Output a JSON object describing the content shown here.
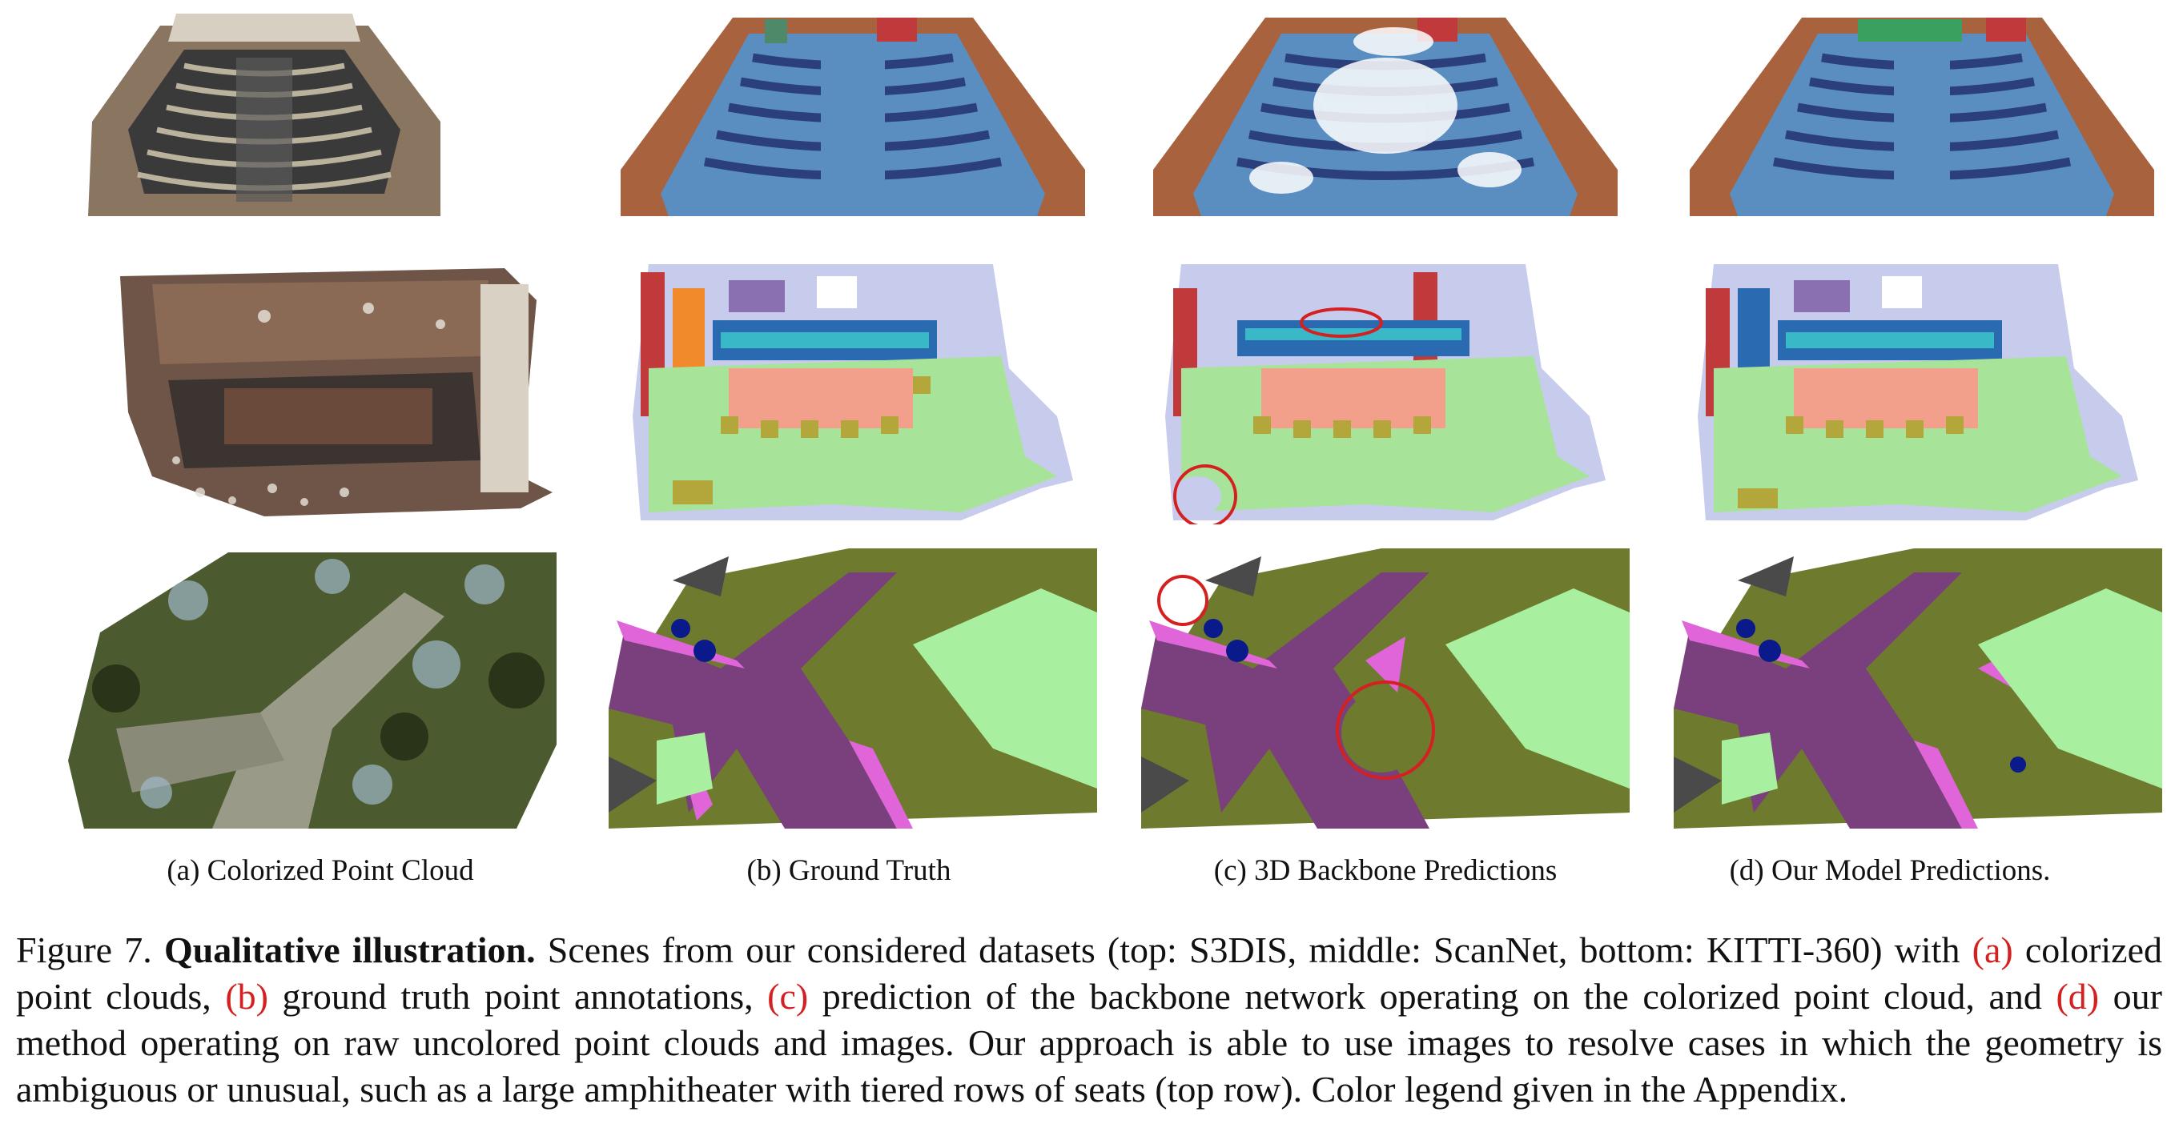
{
  "subcaptions": {
    "a": "(a) Colorized Point Cloud",
    "b": "(b) Ground Truth",
    "c": "(c) 3D Backbone Predictions",
    "d": "(d) Our Model Predictions."
  },
  "caption": {
    "label": "Figure 7.",
    "title": "Qualitative illustration.",
    "segments": [
      " Scenes from our considered datasets (top: S3DIS, middle: ScanNet, bottom: KITTI-360) with ",
      "(a)",
      " colorized point clouds, ",
      "(b)",
      " ground truth point annotations, ",
      "(c)",
      " prediction of the backbone network operating on the colorized point cloud, and ",
      "(d)",
      " our method operating on raw uncolored point clouds and images. Our approach is able to use images to resolve cases in which the geometry is ambiguous or unusual, such as a large amphitheater with tiered rows of seats (top row). Color legend given in the Appendix."
    ]
  },
  "colors": {
    "ref_red": "#d42020",
    "wall_brown": "#a8623e",
    "floor_blue": "#5b8ec0",
    "chair_navy": "#2b3f7a",
    "scan_floor_green": "#a8e39a",
    "table_salmon": "#f2a08c",
    "chair_olive": "#b3a63a",
    "road_purple": "#7a3f7d",
    "sidewalk_magenta": "#e065d8",
    "vegetation_olive": "#6e7a2e",
    "terrain_lightgreen": "#a8f0a0",
    "building_gray": "#4a4a4a",
    "car_blue": "#0a1a8a"
  },
  "rows": [
    "S3DIS",
    "ScanNet",
    "KITTI-360"
  ],
  "columns": [
    "a",
    "b",
    "c",
    "d"
  ]
}
